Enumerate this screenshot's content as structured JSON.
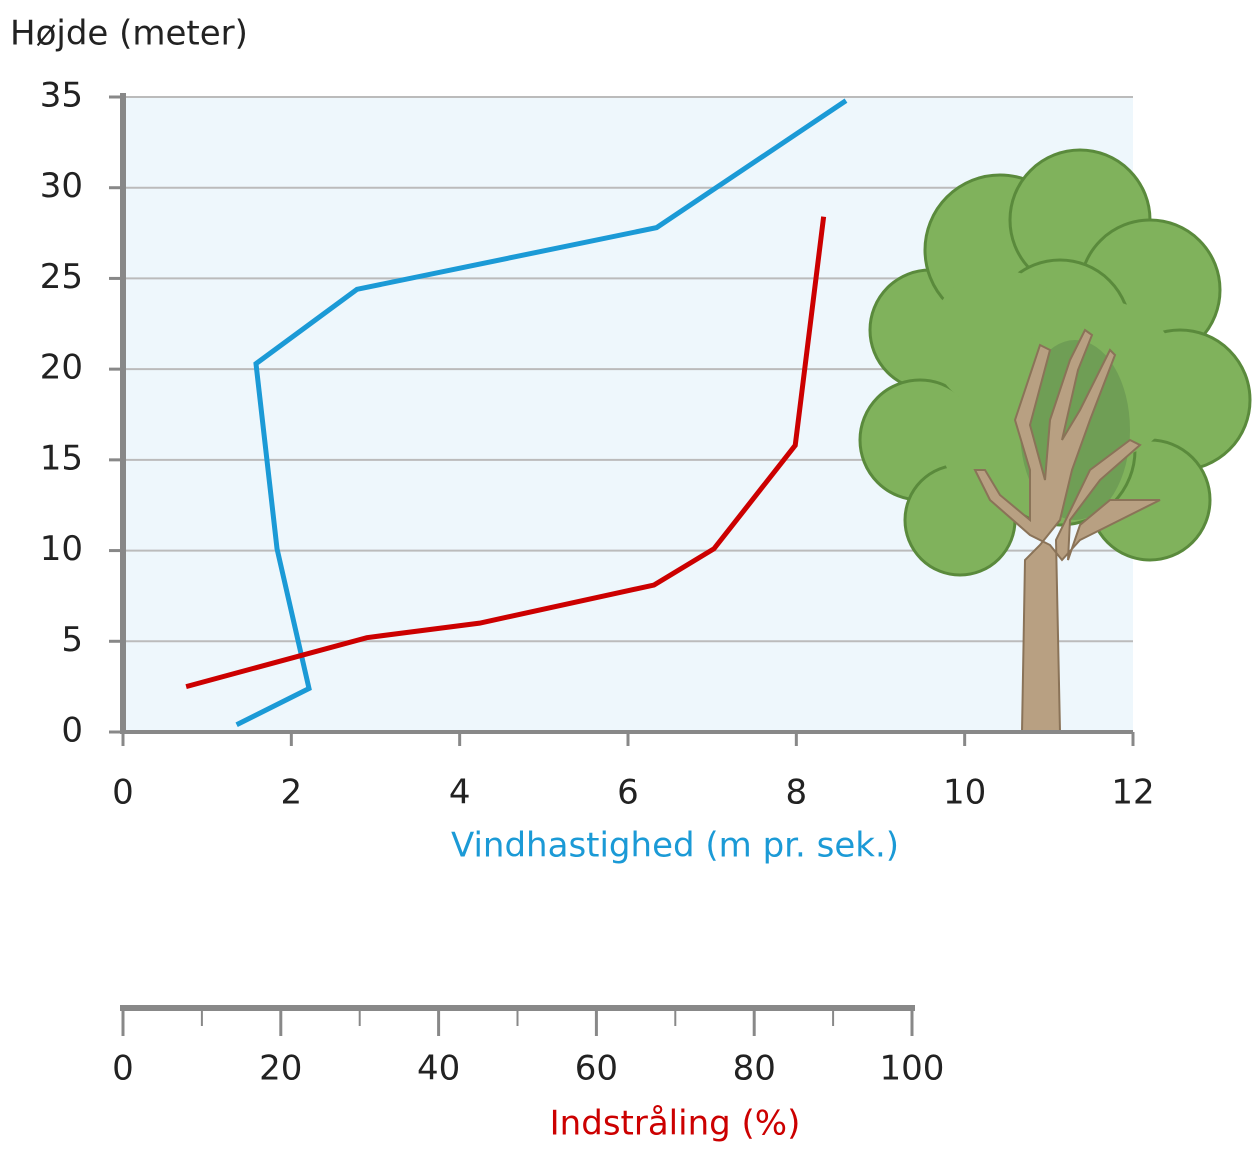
{
  "chart_data": {
    "type": "line",
    "ylabel": "Højde (meter)",
    "xlabel": "Vindhastighed (m pr. sek.)",
    "x2label": "Indstråling (%)",
    "ylim": [
      0,
      35
    ],
    "yticks": [
      0,
      5,
      10,
      15,
      20,
      25,
      30,
      35
    ],
    "xlim": [
      0,
      12
    ],
    "xticks": [
      0,
      2,
      4,
      6,
      8,
      10,
      12
    ],
    "x2lim": [
      0,
      100
    ],
    "x2ticks": [
      0,
      20,
      40,
      60,
      80,
      100
    ],
    "x2minorticks": [
      10,
      30,
      50,
      70,
      90
    ],
    "grid": true,
    "series": [
      {
        "color": "#1b9ad6",
        "axis": "x",
        "x": [
          1.35,
          2.21,
          1.83,
          1.58,
          2.78,
          6.34,
          8.59
        ],
        "values": [
          0.4,
          2.4,
          10.1,
          20.3,
          24.4,
          27.8,
          34.8
        ]
      },
      {
        "color": "#cc0000",
        "axis": "x2",
        "x": [
          8.0,
          30.9,
          45.2,
          67.3,
          74.9,
          85.2,
          88.8
        ],
        "values": [
          2.5,
          5.2,
          6.0,
          8.1,
          10.1,
          15.8,
          28.4
        ]
      }
    ]
  }
}
